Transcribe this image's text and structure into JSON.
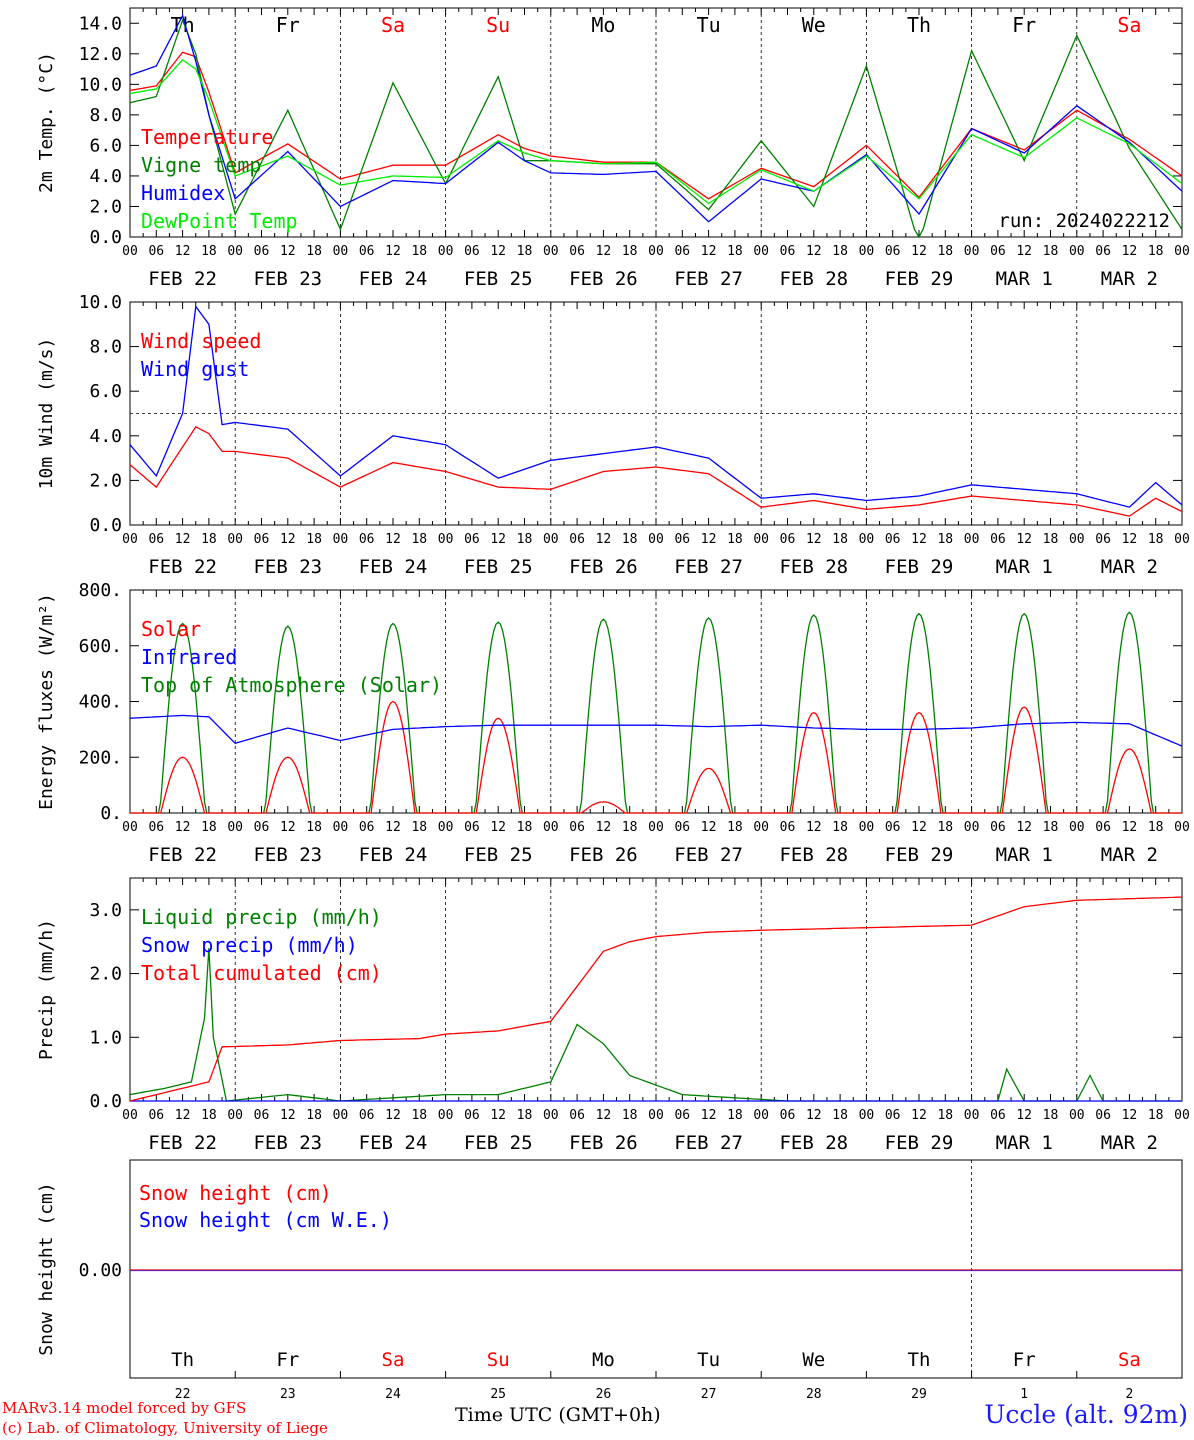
{
  "chart_data": [
    {
      "type": "line",
      "ylabel": "2m Temp. (°C)",
      "ylim": [
        0,
        15
      ],
      "yticks": [
        "0.0",
        "2.0",
        "4.0",
        "6.0",
        "8.0",
        "10.0",
        "12.0",
        "14.0"
      ],
      "top_day_labels": [
        "Th",
        "Fr",
        "Sa",
        "Su",
        "Mo",
        "Tu",
        "We",
        "Th",
        "Fr",
        "Sa"
      ],
      "weekend_day_indices": [
        2,
        3,
        9
      ],
      "annotation": "run: 2024022212",
      "x_hours": [
        0,
        6,
        12,
        15,
        18,
        24,
        36,
        48,
        60,
        72,
        84,
        90,
        96,
        108,
        120,
        132,
        144,
        156,
        168,
        180,
        192,
        204,
        216,
        228,
        240
      ],
      "series": [
        {
          "name": "Temperature",
          "color": "#ff0000",
          "values": [
            9.6,
            9.9,
            12.1,
            11.8,
            9.5,
            4.2,
            6.1,
            3.8,
            4.7,
            4.7,
            6.7,
            5.8,
            5.3,
            4.9,
            4.9,
            2.5,
            4.5,
            3.3,
            6.0,
            2.6,
            7.1,
            5.7,
            8.3,
            6.4,
            4.0
          ]
        },
        {
          "name": "Vigne temp",
          "color": "#008000",
          "values": [
            8.8,
            9.2,
            14.2,
            12.0,
            8.0,
            1.5,
            8.3,
            0.5,
            10.1,
            3.5,
            10.5,
            5.0,
            5.0,
            4.8,
            4.8,
            1.8,
            6.3,
            2.0,
            11.2,
            -0.5,
            12.2,
            5.0,
            13.2,
            5.8,
            0.5
          ]
        },
        {
          "name": "Humidex",
          "color": "#0000ff",
          "values": [
            10.6,
            11.2,
            14.5,
            11.5,
            8.0,
            2.5,
            5.6,
            2.0,
            3.7,
            3.5,
            6.2,
            5.0,
            4.2,
            4.1,
            4.3,
            1.0,
            3.8,
            3.0,
            5.4,
            1.5,
            7.1,
            5.5,
            8.6,
            6.2,
            3.0
          ]
        },
        {
          "name": "DewPoint Temp",
          "color": "#00ee00",
          "values": [
            9.4,
            9.7,
            11.6,
            11.0,
            9.0,
            4.0,
            5.3,
            3.4,
            4.0,
            3.9,
            6.3,
            5.5,
            5.0,
            4.8,
            4.9,
            2.2,
            4.4,
            3.0,
            5.3,
            2.5,
            6.7,
            5.2,
            7.8,
            6.1,
            3.5
          ]
        }
      ]
    },
    {
      "type": "line",
      "ylabel": "10m Wind (m/s)",
      "ylim": [
        0,
        10
      ],
      "yticks": [
        "0.0",
        "2.0",
        "4.0",
        "6.0",
        "8.0",
        "10.0"
      ],
      "reference_line": 5.0,
      "x_hours": [
        0,
        6,
        12,
        15,
        18,
        21,
        24,
        36,
        48,
        60,
        72,
        84,
        96,
        108,
        120,
        132,
        144,
        156,
        168,
        180,
        192,
        204,
        216,
        228,
        234,
        240
      ],
      "series": [
        {
          "name": "Wind speed",
          "color": "#ff0000",
          "values": [
            2.7,
            1.7,
            3.5,
            4.4,
            4.1,
            3.3,
            3.3,
            3.0,
            1.7,
            2.8,
            2.4,
            1.7,
            1.6,
            2.4,
            2.6,
            2.3,
            0.8,
            1.1,
            0.7,
            0.9,
            1.3,
            1.1,
            0.9,
            0.4,
            1.2,
            0.6
          ]
        },
        {
          "name": "Wind gust",
          "color": "#0000ff",
          "values": [
            3.6,
            2.2,
            5.0,
            9.8,
            9.0,
            4.5,
            4.6,
            4.3,
            2.2,
            4.0,
            3.6,
            2.1,
            2.9,
            3.2,
            3.5,
            3.0,
            1.2,
            1.4,
            1.1,
            1.3,
            1.8,
            1.6,
            1.4,
            0.8,
            1.9,
            0.9
          ]
        }
      ]
    },
    {
      "type": "line",
      "ylabel": "Energy fluxes (W/m²)",
      "ylim": [
        0,
        800
      ],
      "yticks": [
        "0.",
        "200.",
        "400.",
        "600.",
        "800."
      ],
      "infrared": {
        "name": "Infrared",
        "color": "#0000ff",
        "x_hours": [
          0,
          12,
          18,
          24,
          36,
          48,
          60,
          72,
          84,
          96,
          108,
          120,
          132,
          144,
          156,
          168,
          180,
          192,
          204,
          216,
          228,
          240
        ],
        "values": [
          340,
          350,
          345,
          250,
          305,
          260,
          300,
          310,
          315,
          315,
          315,
          315,
          310,
          315,
          305,
          300,
          300,
          305,
          320,
          325,
          320,
          240
        ]
      },
      "toa": {
        "name": "Top of Atmosphere (Solar)",
        "color": "#008000",
        "noon_hours": [
          12,
          36,
          60,
          84,
          108,
          132,
          156,
          180,
          204,
          228
        ],
        "peaks": [
          680,
          670,
          680,
          685,
          695,
          700,
          710,
          715,
          715,
          720
        ],
        "half_width_hours": 5.2
      },
      "solar": {
        "name": "Solar",
        "color": "#ff0000",
        "noon_hours": [
          12,
          36,
          60,
          84,
          108,
          132,
          156,
          180,
          204,
          228
        ],
        "peaks": [
          200,
          200,
          400,
          340,
          40,
          160,
          360,
          360,
          380,
          230
        ],
        "half_width_hours": 5.0
      }
    },
    {
      "type": "line",
      "ylabel": "Precip (mm/h)",
      "ylim": [
        0,
        3.5
      ],
      "yticks": [
        "0.0",
        "1.0",
        "2.0",
        "3.0"
      ],
      "series": [
        {
          "name": "Liquid precip (mm/h)",
          "color": "#008000",
          "x_hours": [
            0,
            8,
            14,
            17,
            18,
            19,
            22,
            36,
            48,
            72,
            84,
            90,
            96,
            102,
            108,
            114,
            118,
            126,
            150,
            198,
            200,
            204,
            216,
            219,
            222,
            240
          ],
          "values": [
            0.1,
            0.2,
            0.3,
            1.3,
            2.4,
            1.0,
            0.0,
            0.1,
            0.0,
            0.1,
            0.1,
            0.2,
            0.3,
            1.2,
            0.9,
            0.4,
            0.3,
            0.1,
            0.0,
            0.0,
            0.5,
            0.0,
            0.0,
            0.4,
            0.0,
            0.0
          ]
        },
        {
          "name": "Snow precip (mm/h)",
          "color": "#0000ff",
          "x_hours": [
            0,
            240
          ],
          "values": [
            0.0,
            0.0
          ]
        },
        {
          "name": "Total cumulated (cm)",
          "color": "#ff0000",
          "x_hours": [
            0,
            12,
            18,
            21,
            36,
            48,
            66,
            72,
            84,
            96,
            102,
            108,
            114,
            120,
            132,
            144,
            168,
            192,
            204,
            216,
            240
          ],
          "values": [
            0.0,
            0.2,
            0.3,
            0.85,
            0.88,
            0.95,
            0.98,
            1.05,
            1.1,
            1.25,
            1.8,
            2.35,
            2.5,
            2.58,
            2.65,
            2.68,
            2.72,
            2.76,
            3.05,
            3.15,
            3.2
          ]
        }
      ]
    },
    {
      "type": "line",
      "ylabel": "Snow height (cm)",
      "ytick": "0.00",
      "series": [
        {
          "name": "Snow height (cm)",
          "color": "#ff0000",
          "values": [
            0,
            0
          ]
        },
        {
          "name": "Snow height (cm W.E.)",
          "color": "#0000ff",
          "values": [
            0,
            0
          ]
        }
      ],
      "bottom_day_labels": [
        "Th",
        "Fr",
        "Sa",
        "Su",
        "Mo",
        "Tu",
        "We",
        "Th",
        "Fr",
        "Sa"
      ],
      "bottom_day_numbers": [
        "22",
        "23",
        "24",
        "25",
        "26",
        "27",
        "28",
        "29",
        "1",
        "2"
      ]
    }
  ],
  "x_axis": {
    "hour_labels": [
      "00",
      "06",
      "12",
      "18"
    ],
    "date_labels": [
      "FEB 22",
      "FEB 23",
      "FEB 24",
      "FEB 25",
      "FEB 26",
      "FEB 27",
      "FEB 28",
      "FEB 29",
      "MAR  1",
      "MAR  2"
    ]
  },
  "footer": {
    "model_line": "MARv3.14 model forced by GFS",
    "credit_line": "(c) Lab. of Climatology, University of Liege",
    "time_label": "Time UTC (GMT+0h)",
    "station": "Uccle (alt. 92m)"
  },
  "colors": {
    "weekend": "#ff0000",
    "temperature": "#ff0000",
    "vigne": "#008000",
    "humidex": "#0000ff",
    "dewpoint": "#00ee00"
  }
}
